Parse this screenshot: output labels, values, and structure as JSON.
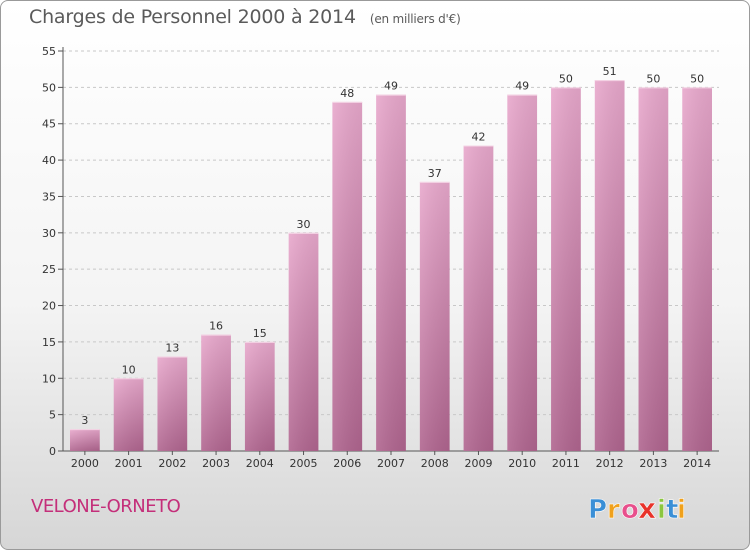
{
  "chart_data": {
    "type": "bar",
    "title": "Charges de Personnel 2000 à 2014",
    "subtitle": "(en milliers d'€)",
    "categories": [
      "2000",
      "2001",
      "2002",
      "2003",
      "2004",
      "2005",
      "2006",
      "2007",
      "2008",
      "2009",
      "2010",
      "2011",
      "2012",
      "2013",
      "2014"
    ],
    "values": [
      3,
      10,
      13,
      16,
      15,
      30,
      48,
      49,
      37,
      42,
      49,
      50,
      51,
      50,
      50
    ],
    "ylim": [
      0,
      55
    ],
    "yticks": [
      0,
      5,
      10,
      15,
      20,
      25,
      30,
      35,
      40,
      45,
      50,
      55
    ],
    "grid": true,
    "bar_color": "#c7609b",
    "xlabel": "",
    "ylabel": ""
  },
  "commune": "VELONE-ORNETO",
  "logo": {
    "letters": [
      "P",
      "r",
      "o",
      "x",
      "i",
      "t",
      "i"
    ],
    "colors": [
      "#3a8fd6",
      "#f0a11c",
      "#e84f8c",
      "#e8332a",
      "#8cc63f",
      "#3a8fd6",
      "#f0a11c"
    ]
  }
}
